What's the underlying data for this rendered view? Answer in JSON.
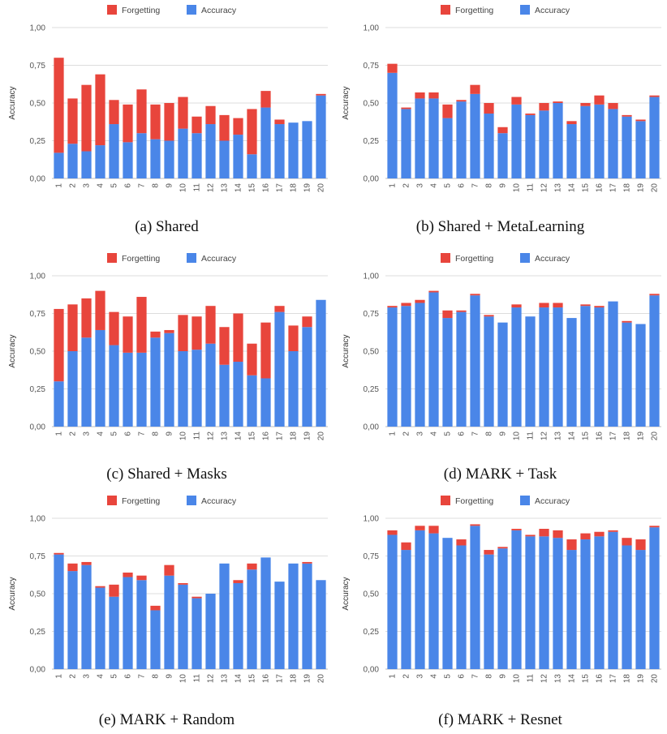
{
  "colors": {
    "forgetting": "#e8453c",
    "accuracy": "#4a86e8",
    "grid": "#dddddd",
    "axis_text": "#555555"
  },
  "chart_data": [
    {
      "type": "bar",
      "stacked": true,
      "caption": "(a) Shared",
      "ylabel": "Accuracy",
      "ylim": [
        0,
        1
      ],
      "yticks": [
        "0,00",
        "0,25",
        "0,50",
        "0,75",
        "1,00"
      ],
      "categories": [
        "1",
        "2",
        "3",
        "4",
        "5",
        "6",
        "7",
        "8",
        "9",
        "10",
        "11",
        "12",
        "13",
        "14",
        "15",
        "16",
        "17",
        "18",
        "19",
        "20"
      ],
      "legend_position": "top",
      "series": [
        {
          "name": "Forgetting",
          "values": [
            0.63,
            0.3,
            0.44,
            0.47,
            0.16,
            0.25,
            0.29,
            0.23,
            0.25,
            0.21,
            0.11,
            0.12,
            0.17,
            0.11,
            0.3,
            0.11,
            0.03,
            0.0,
            0.0,
            0.01
          ]
        },
        {
          "name": "Accuracy",
          "values": [
            0.17,
            0.23,
            0.18,
            0.22,
            0.36,
            0.24,
            0.3,
            0.26,
            0.25,
            0.33,
            0.3,
            0.36,
            0.25,
            0.29,
            0.16,
            0.47,
            0.36,
            0.37,
            0.38,
            0.55
          ]
        }
      ]
    },
    {
      "type": "bar",
      "stacked": true,
      "caption": "(b) Shared + MetaLearning",
      "ylabel": "Accuracy",
      "ylim": [
        0,
        1
      ],
      "yticks": [
        "0,00",
        "0,25",
        "0,50",
        "0,75",
        "1,00"
      ],
      "categories": [
        "1",
        "2",
        "3",
        "4",
        "5",
        "6",
        "7",
        "8",
        "9",
        "10",
        "11",
        "12",
        "13",
        "14",
        "15",
        "16",
        "17",
        "18",
        "19",
        "20"
      ],
      "legend_position": "top",
      "series": [
        {
          "name": "Forgetting",
          "values": [
            0.06,
            0.01,
            0.04,
            0.04,
            0.09,
            0.01,
            0.06,
            0.07,
            0.04,
            0.05,
            0.01,
            0.05,
            0.01,
            0.02,
            0.02,
            0.06,
            0.04,
            0.01,
            0.01,
            0.01
          ]
        },
        {
          "name": "Accuracy",
          "values": [
            0.7,
            0.46,
            0.53,
            0.53,
            0.4,
            0.51,
            0.56,
            0.43,
            0.3,
            0.49,
            0.42,
            0.45,
            0.5,
            0.36,
            0.48,
            0.49,
            0.46,
            0.41,
            0.38,
            0.54
          ]
        }
      ]
    },
    {
      "type": "bar",
      "stacked": true,
      "caption": "(c) Shared + Masks",
      "ylabel": "Accuracy",
      "ylim": [
        0,
        1
      ],
      "yticks": [
        "0,00",
        "0,25",
        "0,50",
        "0,75",
        "1,00"
      ],
      "categories": [
        "1",
        "2",
        "3",
        "4",
        "5",
        "6",
        "7",
        "8",
        "9",
        "10",
        "11",
        "12",
        "13",
        "14",
        "15",
        "16",
        "17",
        "18",
        "19",
        "20"
      ],
      "legend_position": "top",
      "series": [
        {
          "name": "Forgetting",
          "values": [
            0.48,
            0.31,
            0.26,
            0.26,
            0.22,
            0.24,
            0.37,
            0.04,
            0.02,
            0.24,
            0.22,
            0.25,
            0.25,
            0.32,
            0.21,
            0.37,
            0.04,
            0.17,
            0.07,
            0.0
          ]
        },
        {
          "name": "Accuracy",
          "values": [
            0.3,
            0.5,
            0.59,
            0.64,
            0.54,
            0.49,
            0.49,
            0.59,
            0.62,
            0.5,
            0.51,
            0.55,
            0.41,
            0.43,
            0.34,
            0.32,
            0.76,
            0.5,
            0.66,
            0.84
          ]
        }
      ]
    },
    {
      "type": "bar",
      "stacked": true,
      "caption": "(d) MARK + Task",
      "ylabel": "Accuracy",
      "ylim": [
        0,
        1
      ],
      "yticks": [
        "0,00",
        "0,25",
        "0,50",
        "0,75",
        "1,00"
      ],
      "categories": [
        "1",
        "2",
        "3",
        "4",
        "5",
        "6",
        "7",
        "8",
        "9",
        "10",
        "11",
        "12",
        "13",
        "14",
        "15",
        "16",
        "17",
        "18",
        "19",
        "20"
      ],
      "legend_position": "top",
      "series": [
        {
          "name": "Forgetting",
          "values": [
            0.01,
            0.02,
            0.02,
            0.01,
            0.05,
            0.01,
            0.01,
            0.01,
            0.0,
            0.02,
            0.0,
            0.03,
            0.03,
            0.0,
            0.01,
            0.01,
            0.0,
            0.01,
            0.0,
            0.01
          ]
        },
        {
          "name": "Accuracy",
          "values": [
            0.79,
            0.8,
            0.82,
            0.89,
            0.72,
            0.76,
            0.87,
            0.73,
            0.69,
            0.79,
            0.73,
            0.79,
            0.79,
            0.72,
            0.8,
            0.79,
            0.83,
            0.69,
            0.68,
            0.87
          ]
        }
      ]
    },
    {
      "type": "bar",
      "stacked": true,
      "caption": "(e) MARK + Random",
      "ylabel": "Accuracy",
      "ylim": [
        0,
        1
      ],
      "yticks": [
        "0,00",
        "0,25",
        "0,50",
        "0,75",
        "1,00"
      ],
      "categories": [
        "1",
        "2",
        "3",
        "4",
        "5",
        "6",
        "7",
        "8",
        "9",
        "10",
        "11",
        "12",
        "13",
        "14",
        "15",
        "16",
        "17",
        "18",
        "19",
        "20"
      ],
      "legend_position": "top",
      "series": [
        {
          "name": "Forgetting",
          "values": [
            0.01,
            0.05,
            0.02,
            0.01,
            0.08,
            0.03,
            0.03,
            0.03,
            0.07,
            0.01,
            0.01,
            0.0,
            0.0,
            0.02,
            0.04,
            0.0,
            0.0,
            0.0,
            0.01,
            0.0
          ]
        },
        {
          "name": "Accuracy",
          "values": [
            0.76,
            0.65,
            0.69,
            0.54,
            0.48,
            0.61,
            0.59,
            0.39,
            0.62,
            0.56,
            0.47,
            0.5,
            0.7,
            0.57,
            0.66,
            0.74,
            0.58,
            0.7,
            0.7,
            0.59
          ]
        }
      ]
    },
    {
      "type": "bar",
      "stacked": true,
      "caption": "(f) MARK + Resnet",
      "ylabel": "Accuracy",
      "ylim": [
        0,
        1
      ],
      "yticks": [
        "0,00",
        "0,25",
        "0,50",
        "0,75",
        "1,00"
      ],
      "categories": [
        "1",
        "2",
        "3",
        "4",
        "5",
        "6",
        "7",
        "8",
        "9",
        "10",
        "11",
        "12",
        "13",
        "14",
        "15",
        "16",
        "17",
        "18",
        "19",
        "20"
      ],
      "legend_position": "top",
      "series": [
        {
          "name": "Forgetting",
          "values": [
            0.03,
            0.05,
            0.03,
            0.05,
            0.0,
            0.04,
            0.01,
            0.03,
            0.01,
            0.01,
            0.01,
            0.05,
            0.05,
            0.07,
            0.04,
            0.03,
            0.01,
            0.05,
            0.07,
            0.01
          ]
        },
        {
          "name": "Accuracy",
          "values": [
            0.89,
            0.79,
            0.92,
            0.9,
            0.87,
            0.82,
            0.95,
            0.76,
            0.8,
            0.92,
            0.88,
            0.88,
            0.87,
            0.79,
            0.86,
            0.88,
            0.91,
            0.82,
            0.79,
            0.94
          ]
        }
      ]
    }
  ]
}
